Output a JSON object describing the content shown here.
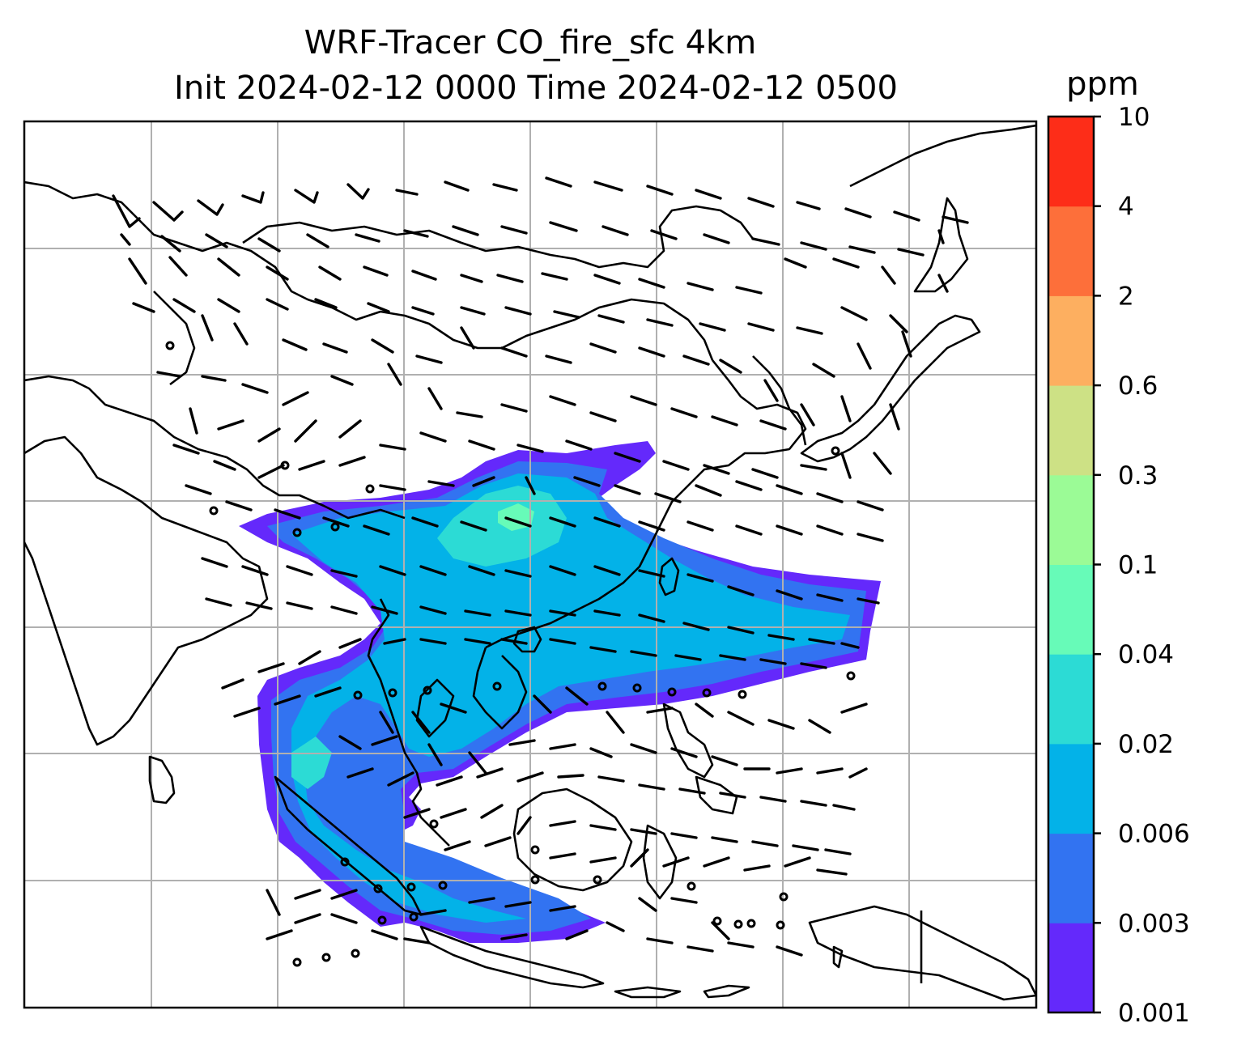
{
  "title": {
    "line1": "WRF-Tracer CO_fire_sfc 4km",
    "line2": "Init 2024-02-12 0000 Time 2024-02-12 0500"
  },
  "colorbar": {
    "unit": "ppm",
    "levels": [
      "0.001",
      "0.003",
      "0.006",
      "0.02",
      "0.04",
      "0.1",
      "0.3",
      "0.6",
      "2",
      "4",
      "10"
    ],
    "colors": [
      "#6429fb",
      "#3273f1",
      "#03b2e8",
      "#2cdbd5",
      "#67fbb8",
      "#9bfb96",
      "#cde185",
      "#fdaf60",
      "#fd6f3a",
      "#fd2d18"
    ]
  },
  "map": {
    "land_outline_color": "#000000",
    "gridline_color": "#b0b0b0",
    "barb_color": "#000000",
    "field": "CO_fire_sfc"
  }
}
